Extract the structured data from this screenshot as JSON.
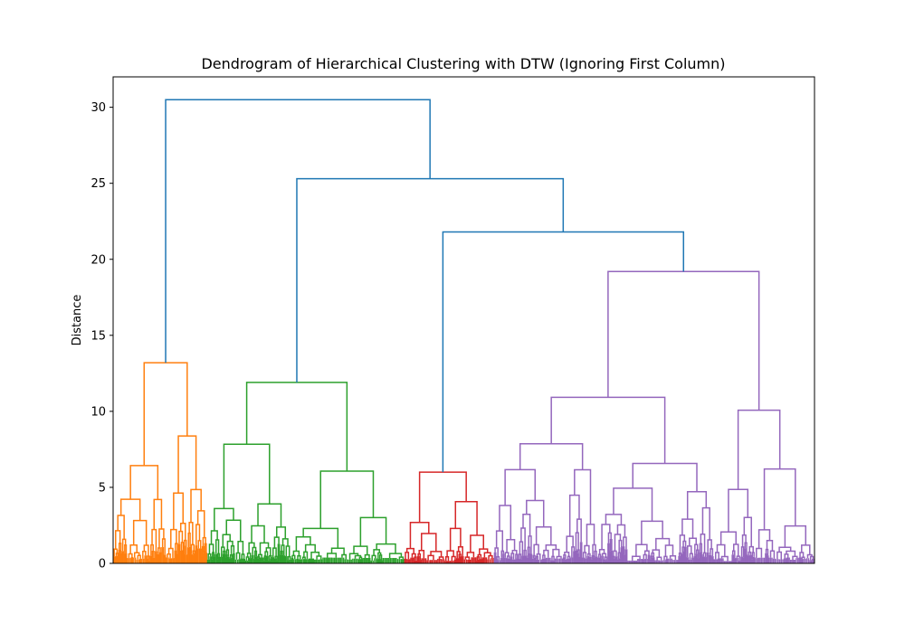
{
  "chart_data": {
    "type": "dendrogram",
    "title": "Dendrogram of Hierarchical Clustering with DTW (Ignoring First Column)",
    "xlabel": "",
    "ylabel": "Distance",
    "ylim": [
      0,
      32
    ],
    "yticks": [
      0,
      5,
      10,
      15,
      20,
      25,
      30
    ],
    "xticks_shown": false,
    "grid": false,
    "colors": {
      "above_threshold": "#1f77b4",
      "cluster_1": "#ff7f0e",
      "cluster_2": "#2ca02c",
      "cluster_3": "#d62728",
      "cluster_4": "#9467bd"
    },
    "top_links": [
      {
        "height": 30.5,
        "left_height": 13.2,
        "right_height": 25.3
      },
      {
        "height": 25.3,
        "left_height": 11.9,
        "right_height": 21.8
      },
      {
        "height": 21.8,
        "left_height": 6.0,
        "right_height": 19.2
      }
    ],
    "clusters": [
      {
        "name": "cluster_1",
        "color": "#ff7f0e",
        "leaf_span": [
          0.0,
          0.134
        ],
        "root_height": 13.2,
        "sub_merges": [
          9.6,
          8.0,
          7.6,
          5.3,
          5.0,
          4.8,
          4.6
        ]
      },
      {
        "name": "cluster_2",
        "color": "#2ca02c",
        "leaf_span": [
          0.134,
          0.415
        ],
        "root_height": 11.9,
        "sub_merges": [
          8.0,
          6.9,
          5.8,
          5.1,
          5.0,
          4.9,
          4.6
        ]
      },
      {
        "name": "cluster_3",
        "color": "#d62728",
        "leaf_span": [
          0.415,
          0.543
        ],
        "root_height": 6.0,
        "sub_merges": [
          3.4,
          3.0,
          2.1,
          1.8
        ]
      },
      {
        "name": "cluster_4",
        "color": "#9467bd",
        "leaf_span": [
          0.543,
          1.0
        ],
        "root_height": 19.2,
        "sub_merges": [
          12.5,
          11.9,
          10.4,
          6.8,
          6.0,
          6.0,
          6.0,
          5.3,
          4.0,
          3.9
        ]
      }
    ]
  }
}
